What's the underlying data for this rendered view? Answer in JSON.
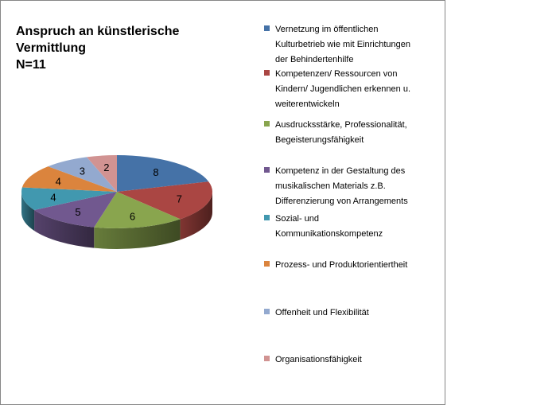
{
  "title_lines": [
    "Anspruch an künstlerische",
    "Vermittlung",
    "N=11"
  ],
  "colors": {
    "frame_border": "#868686",
    "series": [
      "#4572A7",
      "#AA4643",
      "#89A54E",
      "#71588F",
      "#4198AF",
      "#DB843D",
      "#93A9CF",
      "#D19392"
    ]
  },
  "legend": {
    "items": [
      {
        "lines": [
          "Vernetzung im öffentlichen",
          "Kulturbetrieb wie mit Einrichtungen",
          "der Behindertenhilfe"
        ]
      },
      {
        "lines": [
          "Kompetenzen/ Ressourcen von",
          "Kindern/ Jugendlichen erkennen u.",
          "weiterentwickeln"
        ]
      },
      {
        "lines": [
          "Ausdrucksstärke, Professionalität,",
          "Begeisterungsfähigkeit"
        ]
      },
      {
        "lines": [
          "Kompetenz in der Gestaltung des",
          "musikalischen Materials z.B.",
          "Differenzierung von Arrangements"
        ]
      },
      {
        "lines": [
          "Sozial- und",
          "Kommunikationskompetenz"
        ]
      },
      {
        "lines": [
          "Prozess- und Produktorientiertheit"
        ]
      },
      {
        "lines": [
          "Offenheit und Flexibilität"
        ]
      },
      {
        "lines": [
          "Organisationsfähigkeit"
        ]
      }
    ]
  },
  "chart_data": {
    "type": "pie",
    "style": "3d",
    "title": "Anspruch an künstlerische Vermittlung N=11",
    "categories": [
      "Vernetzung im öffentlichen Kulturbetrieb wie mit Einrichtungen der Behindertenhilfe",
      "Kompetenzen/ Ressourcen von Kindern/ Jugendlichen erkennen u. weiterentwickeln",
      "Ausdrucksstärke, Professionalität, Begeisterungsfähigkeit",
      "Kompetenz in der Gestaltung des musikalischen Materials z.B. Differenzierung von Arrangements",
      "Sozial- und Kommunikationskompetenz",
      "Prozess- und Produktorientiertheit",
      "Offenheit und Flexibilität",
      "Organisationsfähigkeit"
    ],
    "values": [
      8,
      7,
      6,
      5,
      4,
      4,
      3,
      2
    ],
    "data_labels": [
      "8",
      "7",
      "6",
      "5",
      "4",
      "4",
      "3",
      "2"
    ],
    "legend_position": "right"
  }
}
